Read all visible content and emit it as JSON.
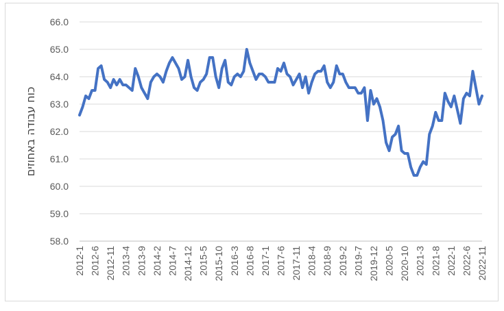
{
  "chart_data": {
    "type": "line",
    "title": "",
    "xlabel": "",
    "ylabel": "כוח עבודה באחוזים",
    "ylim": [
      58.0,
      66.0
    ],
    "y_ticks": [
      "58.0",
      "59.0",
      "60.0",
      "61.0",
      "62.0",
      "63.0",
      "64.0",
      "65.0",
      "66.0"
    ],
    "x_tick_labels": [
      "2012-1",
      "2012-6",
      "2012-11",
      "2013-4",
      "2013-9",
      "2014-2",
      "2014-7",
      "2014-12",
      "2015-5",
      "2015-10",
      "2016-3",
      "2016-8",
      "2017-1",
      "2017-6",
      "2017-11",
      "2018-4",
      "2018-9",
      "2019-2",
      "2019-7",
      "2019-12",
      "2020-5",
      "2020-10",
      "2021-3",
      "2021-8",
      "2022-1",
      "2022-6",
      "2022-11"
    ],
    "grid": true,
    "legend": "none",
    "line_color": "#4472c4",
    "series": [
      {
        "values": [
          62.6,
          62.9,
          63.3,
          63.2,
          63.5,
          63.5,
          64.3,
          64.4,
          63.9,
          63.8,
          63.6,
          63.9,
          63.7,
          63.9,
          63.7,
          63.7,
          63.6,
          63.5,
          64.3,
          64.0,
          63.6,
          63.4,
          63.2,
          63.8,
          64.0,
          64.1,
          64.0,
          63.8,
          64.2,
          64.5,
          64.7,
          64.5,
          64.3,
          63.9,
          64.0,
          64.6,
          64.0,
          63.6,
          63.5,
          63.8,
          63.9,
          64.1,
          64.7,
          64.7,
          64.0,
          63.6,
          64.3,
          64.6,
          63.8,
          63.7,
          64.0,
          64.1,
          64.0,
          64.2,
          65.0,
          64.5,
          64.2,
          63.9,
          64.1,
          64.1,
          64.0,
          63.8,
          63.8,
          63.8,
          64.3,
          64.2,
          64.5,
          64.1,
          64.0,
          63.7,
          63.9,
          64.1,
          63.6,
          64.0,
          63.4,
          63.8,
          64.1,
          64.2,
          64.2,
          64.4,
          63.8,
          63.6,
          63.8,
          64.4,
          64.1,
          64.1,
          63.8,
          63.6,
          63.6,
          63.6,
          63.4,
          63.4,
          63.6,
          62.4,
          63.5,
          63.0,
          63.2,
          62.9,
          62.4,
          61.6,
          61.3,
          61.8,
          61.9,
          62.2,
          61.3,
          61.2,
          61.2,
          60.7,
          60.4,
          60.4,
          60.7,
          60.9,
          60.8,
          61.9,
          62.2,
          62.7,
          62.4,
          62.4,
          63.4,
          63.1,
          62.9,
          63.3,
          62.8,
          62.3,
          63.2,
          63.4,
          63.3,
          64.2,
          63.6,
          63.0,
          63.3
        ]
      }
    ]
  }
}
